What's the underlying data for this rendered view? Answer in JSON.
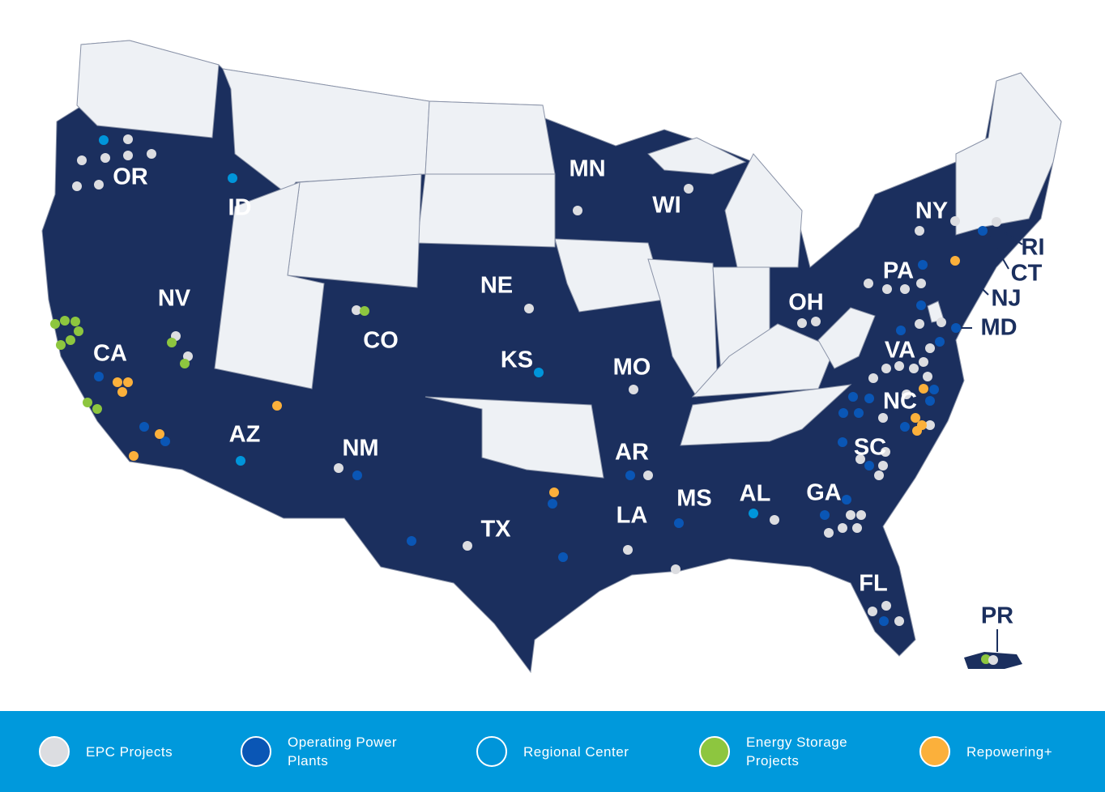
{
  "map": {
    "states": [
      "OR",
      "ID",
      "NV",
      "CA",
      "CO",
      "NE",
      "KS",
      "MN",
      "WI",
      "MO",
      "AR",
      "LA",
      "MS",
      "AL",
      "GA",
      "TX",
      "NM",
      "AZ",
      "OH",
      "PA",
      "NY",
      "VA",
      "NC",
      "SC",
      "FL",
      "PR",
      "RI",
      "CT",
      "NJ",
      "MD"
    ],
    "colors": {
      "active": "#1b2f5e",
      "inactive": "#eef1f5",
      "border": "#8a93a8"
    }
  },
  "legend": {
    "background": "#0099dc",
    "items": [
      {
        "label": "EPC Projects",
        "color": "#dcdde1"
      },
      {
        "label": "Operating Power Plants",
        "color": "#0a56b5"
      },
      {
        "label": "Regional Center",
        "color": "#0095da"
      },
      {
        "label": "Energy Storage Projects",
        "color": "#8dc63f"
      },
      {
        "label": "Repowering+",
        "color": "#fbb03b"
      }
    ]
  }
}
